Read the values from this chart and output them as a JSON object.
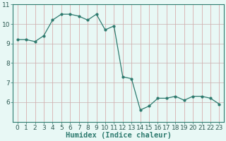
{
  "x": [
    0,
    1,
    2,
    3,
    4,
    5,
    6,
    7,
    8,
    9,
    10,
    11,
    12,
    13,
    14,
    15,
    16,
    17,
    18,
    19,
    20,
    21,
    22,
    23
  ],
  "y": [
    9.2,
    9.2,
    9.1,
    9.4,
    10.2,
    10.5,
    10.5,
    10.4,
    10.2,
    10.5,
    9.7,
    9.9,
    7.3,
    7.2,
    5.6,
    5.8,
    6.2,
    6.2,
    6.3,
    6.1,
    6.3,
    6.3,
    6.2,
    5.9
  ],
  "line_color": "#2d7a6e",
  "bg_color": "#e8f8f5",
  "grid_color_v": "#d4a0a0",
  "grid_color_h": "#c8b0b0",
  "xlabel": "Humidex (Indice chaleur)",
  "ylim": [
    5.0,
    11.0
  ],
  "xlim": [
    -0.5,
    23.5
  ],
  "yticks": [
    6,
    7,
    8,
    9,
    10,
    11
  ],
  "xticks": [
    0,
    1,
    2,
    3,
    4,
    5,
    6,
    7,
    8,
    9,
    10,
    11,
    12,
    13,
    14,
    15,
    16,
    17,
    18,
    19,
    20,
    21,
    22,
    23
  ],
  "xlabel_fontsize": 7.5,
  "tick_fontsize": 6.5
}
